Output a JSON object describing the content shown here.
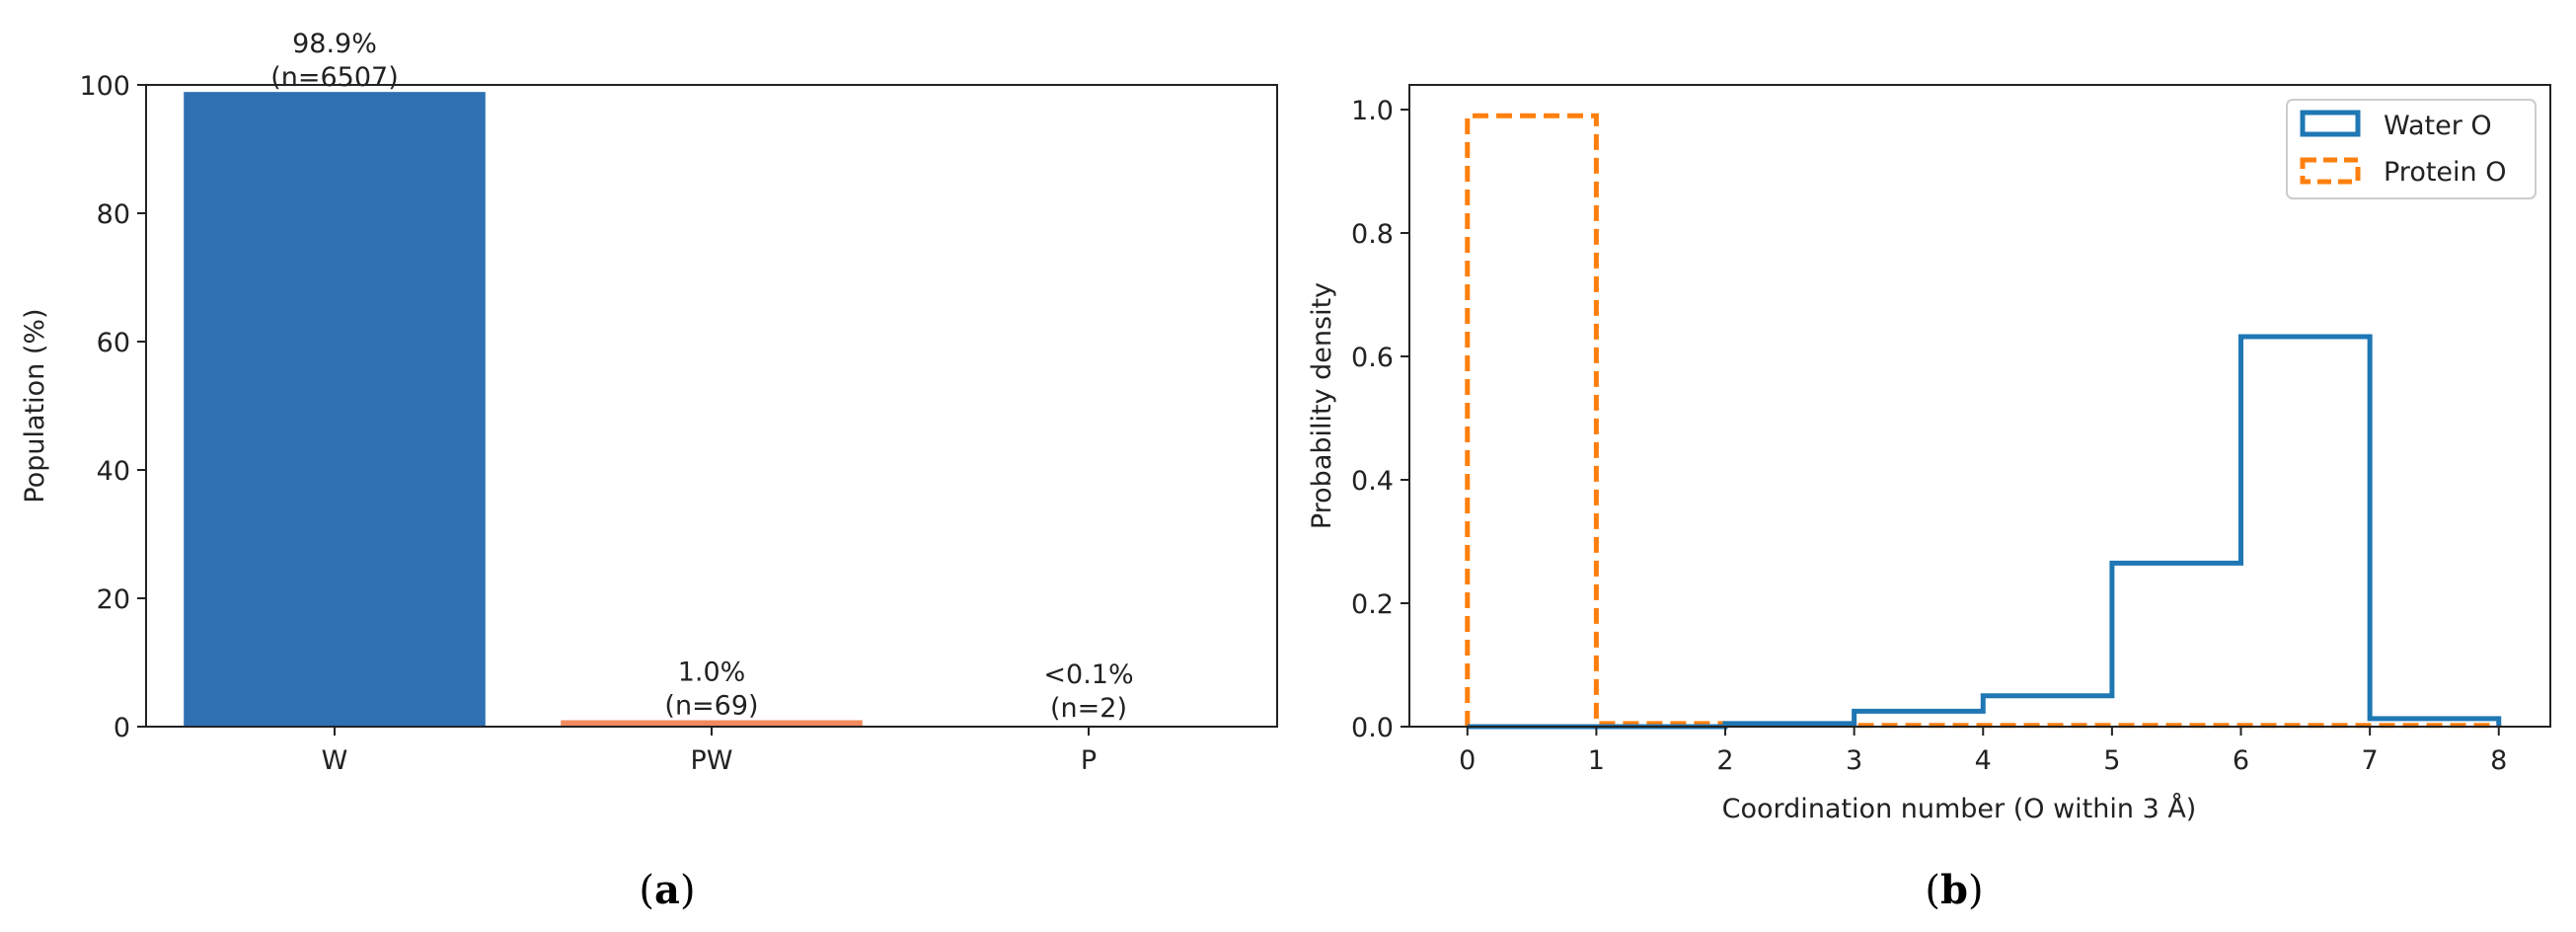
{
  "colors": {
    "bar_W": "#2f70b3",
    "bar_PW": "#f08a5d",
    "water_line": "#1f77b4",
    "protein_line": "#ff7f0e",
    "axis": "#222222"
  },
  "captions": {
    "a": "a",
    "b": "b"
  },
  "chart_data": [
    {
      "type": "bar",
      "categories": [
        "W",
        "PW",
        "P"
      ],
      "values": [
        98.9,
        1.0,
        0.03
      ],
      "data_labels": [
        [
          "98.9%",
          "(n=6507)"
        ],
        [
          "1.0%",
          "(n=69)"
        ],
        [
          "<0.1%",
          "(n=2)"
        ]
      ],
      "ylabel": "Population (%)",
      "xlabel": "",
      "ylim": [
        0,
        100
      ],
      "yticks": [
        0,
        20,
        40,
        60,
        80,
        100
      ],
      "xlim": [
        -0.5,
        2.5
      ],
      "grid": false
    },
    {
      "type": "line",
      "subtype": "step-histogram",
      "bin_edges": [
        0,
        1,
        2,
        3,
        4,
        5,
        6,
        7,
        8
      ],
      "series": [
        {
          "name": "Water O",
          "style": "solid",
          "values": [
            0.0,
            0.0,
            0.005,
            0.025,
            0.05,
            0.265,
            0.632,
            0.013
          ]
        },
        {
          "name": "Protein O",
          "style": "dashed",
          "values": [
            0.99,
            0.005,
            0.004,
            0.002,
            0.002,
            0.002,
            0.002,
            0.002
          ]
        }
      ],
      "xlabel": "Coordination number (O within 3 Å)",
      "ylabel": "Probability density",
      "xlim": [
        -0.45,
        8.4
      ],
      "ylim": [
        0,
        1.04
      ],
      "xticks": [
        0,
        1,
        2,
        3,
        4,
        5,
        6,
        7,
        8
      ],
      "yticks": [
        0.0,
        0.2,
        0.4,
        0.6,
        0.8,
        1.0
      ],
      "ytick_labels": [
        "0.0",
        "0.2",
        "0.4",
        "0.6",
        "0.8",
        "1.0"
      ],
      "legend": "top-right",
      "grid": false
    }
  ]
}
